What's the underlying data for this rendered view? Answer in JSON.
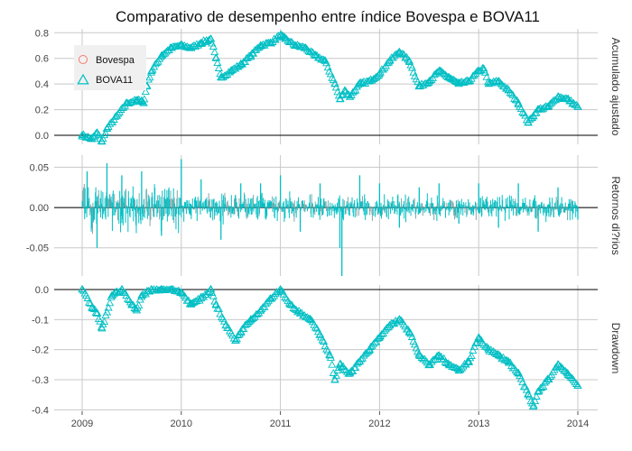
{
  "chart_data": {
    "type": "scatter",
    "title": "Comparativo de desempenho entre índice Bovespa e BOVA11",
    "x_ticks": [
      "2009",
      "2010",
      "2011",
      "2012",
      "2013",
      "2014"
    ],
    "x_domain": [
      2009.0,
      2014.0
    ],
    "legend": {
      "placement": "top-left inside first panel",
      "entries": [
        {
          "label": "Bovespa",
          "shape": "circle",
          "color": "#F8766D"
        },
        {
          "label": "BOVA11",
          "shape": "triangle",
          "color": "#00BFC4"
        }
      ]
    },
    "colors": {
      "bovespa": "#F8766D",
      "bova11": "#00BFC4",
      "grid": "#c8c8c8",
      "zero_line": "#000000"
    },
    "panels": [
      {
        "strip_label": "Acumulado ajustado",
        "mark": "triangle-points",
        "ylim": [
          -0.07,
          0.83
        ],
        "y_ticks": [
          "0.0",
          "0.2",
          "0.4",
          "0.6",
          "0.8"
        ],
        "y_tick_values": [
          0.0,
          0.2,
          0.4,
          0.6,
          0.8
        ],
        "zero_line": 0.0,
        "series": [
          {
            "name": "BOVA11",
            "x": [
              2009.0,
              2009.1,
              2009.15,
              2009.2,
              2009.25,
              2009.35,
              2009.45,
              2009.55,
              2009.6,
              2009.62,
              2009.65,
              2009.7,
              2009.8,
              2009.9,
              2010.0,
              2010.1,
              2010.2,
              2010.3,
              2010.35,
              2010.4,
              2010.5,
              2010.6,
              2010.7,
              2010.8,
              2010.9,
              2011.0,
              2011.05,
              2011.15,
              2011.25,
              2011.35,
              2011.45,
              2011.55,
              2011.6,
              2011.65,
              2011.7,
              2011.8,
              2011.9,
              2012.0,
              2012.1,
              2012.2,
              2012.3,
              2012.4,
              2012.5,
              2012.6,
              2012.7,
              2012.8,
              2012.9,
              2013.0,
              2013.05,
              2013.1,
              2013.2,
              2013.3,
              2013.4,
              2013.5,
              2013.55,
              2013.6,
              2013.7,
              2013.8,
              2013.9,
              2014.0
            ],
            "y": [
              0.0,
              -0.03,
              0.02,
              -0.05,
              0.05,
              0.15,
              0.25,
              0.27,
              0.27,
              0.25,
              0.38,
              0.5,
              0.62,
              0.68,
              0.7,
              0.68,
              0.72,
              0.75,
              0.6,
              0.45,
              0.5,
              0.55,
              0.62,
              0.7,
              0.72,
              0.78,
              0.75,
              0.7,
              0.68,
              0.62,
              0.58,
              0.4,
              0.28,
              0.35,
              0.3,
              0.4,
              0.42,
              0.48,
              0.58,
              0.65,
              0.58,
              0.38,
              0.42,
              0.5,
              0.45,
              0.4,
              0.42,
              0.5,
              0.52,
              0.4,
              0.42,
              0.35,
              0.25,
              0.1,
              0.15,
              0.2,
              0.22,
              0.3,
              0.28,
              0.22
            ]
          }
        ]
      },
      {
        "strip_label": "Retornos di?rios",
        "mark": "vertical-bars",
        "ylim": [
          -0.085,
          0.065
        ],
        "y_ticks": [
          "0.05",
          "0.00",
          "-0.05"
        ],
        "y_tick_values": [
          0.05,
          0.0,
          -0.05
        ],
        "zero_line": 0.0,
        "series": [
          {
            "name": "BOVA11",
            "x": [
              2009.05,
              2009.15,
              2009.25,
              2009.4,
              2009.6,
              2009.8,
              2010.0,
              2010.2,
              2010.4,
              2010.6,
              2010.8,
              2011.0,
              2011.2,
              2011.4,
              2011.6,
              2011.62,
              2011.8,
              2012.0,
              2012.2,
              2012.4,
              2012.6,
              2012.8,
              2013.0,
              2013.2,
              2013.4,
              2013.6,
              2013.8,
              2014.0
            ],
            "y": [
              0.045,
              -0.05,
              0.055,
              0.04,
              0.045,
              -0.035,
              0.06,
              0.035,
              -0.04,
              0.03,
              0.03,
              0.04,
              -0.03,
              0.03,
              -0.05,
              -0.085,
              0.04,
              0.03,
              -0.025,
              0.025,
              0.03,
              -0.02,
              0.03,
              -0.025,
              0.03,
              -0.03,
              0.025,
              -0.015
            ]
          }
        ]
      },
      {
        "strip_label": "Drawdown",
        "mark": "triangle-points",
        "ylim": [
          -0.405,
          0.015
        ],
        "y_ticks": [
          "0.0",
          "-0.1",
          "-0.2",
          "-0.3",
          "-0.4"
        ],
        "y_tick_values": [
          0.0,
          -0.1,
          -0.2,
          -0.3,
          -0.4
        ],
        "zero_line": 0.0,
        "series": [
          {
            "name": "BOVA11",
            "x": [
              2009.0,
              2009.1,
              2009.15,
              2009.2,
              2009.3,
              2009.4,
              2009.5,
              2009.55,
              2009.6,
              2009.7,
              2009.8,
              2009.9,
              2010.0,
              2010.1,
              2010.2,
              2010.3,
              2010.35,
              2010.45,
              2010.55,
              2010.6,
              2010.7,
              2010.8,
              2010.9,
              2011.0,
              2011.1,
              2011.2,
              2011.3,
              2011.4,
              2011.5,
              2011.55,
              2011.6,
              2011.7,
              2011.8,
              2011.9,
              2012.0,
              2012.1,
              2012.2,
              2012.3,
              2012.4,
              2012.5,
              2012.6,
              2012.7,
              2012.8,
              2012.9,
              2013.0,
              2013.1,
              2013.2,
              2013.3,
              2013.4,
              2013.5,
              2013.55,
              2013.6,
              2013.7,
              2013.8,
              2013.9,
              2014.0
            ],
            "y": [
              0.0,
              -0.06,
              -0.08,
              -0.13,
              -0.02,
              0.0,
              -0.05,
              -0.07,
              -0.02,
              0.0,
              0.0,
              0.0,
              -0.01,
              -0.05,
              -0.03,
              0.0,
              -0.05,
              -0.12,
              -0.17,
              -0.14,
              -0.1,
              -0.07,
              -0.03,
              0.0,
              -0.05,
              -0.08,
              -0.1,
              -0.15,
              -0.22,
              -0.3,
              -0.25,
              -0.28,
              -0.24,
              -0.2,
              -0.16,
              -0.12,
              -0.1,
              -0.14,
              -0.22,
              -0.25,
              -0.22,
              -0.25,
              -0.27,
              -0.24,
              -0.16,
              -0.2,
              -0.22,
              -0.24,
              -0.28,
              -0.35,
              -0.39,
              -0.34,
              -0.3,
              -0.25,
              -0.28,
              -0.32
            ]
          }
        ]
      }
    ]
  }
}
